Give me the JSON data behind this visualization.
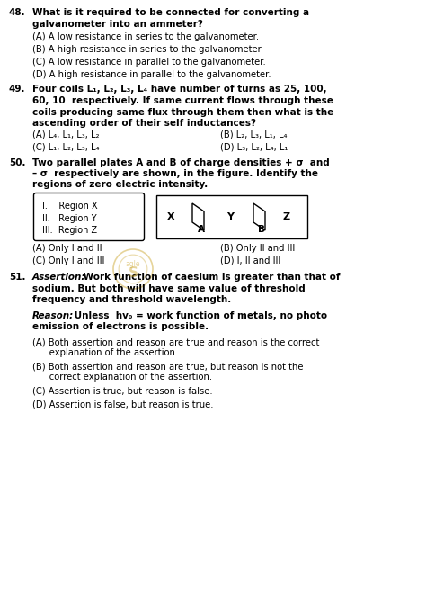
{
  "bg_color": "#ffffff",
  "q48_num": "48.",
  "q48_line1": "What is it required to be connected for converting a",
  "q48_line2": "galvanometer into an ammeter?",
  "q48_opts": [
    "(A) A low resistance in series to the galvanometer.",
    "(B) A high resistance in series to the galvanometer.",
    "(C) A low resistance in parallel to the galvanometer.",
    "(D) A high resistance in parallel to the galvanometer."
  ],
  "q49_num": "49.",
  "q49_lines": [
    "Four coils L₁, L₂, L₃, L₄ have number of turns as 25, 100,",
    "60, 10  respectively. If same current flows through these",
    "coils producing same flux through them then what is the",
    "ascending order of their self inductances?"
  ],
  "q49_opts": [
    [
      "(A) L₄, L₁, L₃, L₂",
      "(B) L₂, L₃, L₁, L₄"
    ],
    [
      "(C) L₁, L₂, L₃, L₄",
      "(D) L₃, L₂, L₄, L₁"
    ]
  ],
  "q50_num": "50.",
  "q50_lines": [
    "Two parallel plates A and B of charge densities + σ  and",
    "– σ  respectively are shown, in the figure. Identify the",
    "regions of zero electric intensity."
  ],
  "q50_legend": [
    "I.    Region X",
    "II.   Region Y",
    "III.  Region Z"
  ],
  "q50_opts": [
    [
      "(A) Only I and II",
      "(B) Only II and III"
    ],
    [
      "(C) Only I and III",
      "(D) I, II and III"
    ]
  ],
  "q51_num": "51.",
  "q51_assert_label": "Assertion:",
  "q51_assert_lines": [
    " Work function of caesium is greater than that of",
    "sodium. But both will have same value of threshold",
    "frequency and threshold wavelength."
  ],
  "q51_reason_label": "Reason:",
  "q51_reason_lines": [
    " Unless  hv₀ = work function of metals, no photo",
    "emission of electrons is possible."
  ],
  "q51_opts": [
    [
      "(A) Both assertion and reason are true and reason is the correct",
      "      explanation of the assertion."
    ],
    [
      "(B) Both assertion and reason are true, but reason is not the",
      "      correct explanation of the assertion."
    ],
    [
      "(C) Assertion is true, but reason is false."
    ],
    [
      "(D) Assertion is false, but reason is true."
    ]
  ],
  "wm_color": "#c8a020"
}
